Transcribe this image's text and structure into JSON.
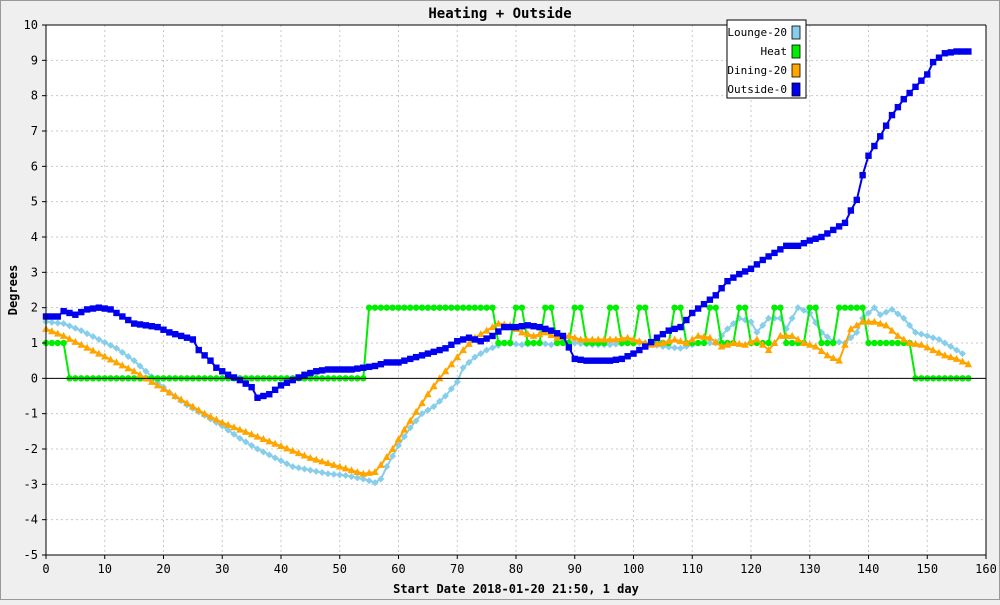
{
  "chart_data": {
    "type": "line",
    "title": "Heating + Outside",
    "xlabel": "Start Date 2018-01-20 21:50, 1 day",
    "ylabel": "Degrees",
    "xlim": [
      0,
      160
    ],
    "ylim": [
      -5,
      10
    ],
    "xticks": [
      0,
      10,
      20,
      30,
      40,
      50,
      60,
      70,
      80,
      90,
      100,
      110,
      120,
      130,
      140,
      150,
      160
    ],
    "yticks": [
      -5,
      -4,
      -3,
      -2,
      -1,
      0,
      1,
      2,
      3,
      4,
      5,
      6,
      7,
      8,
      9,
      10
    ],
    "grid": true,
    "legend_position": "top-right",
    "series": [
      {
        "name": "Lounge-20",
        "color": "#87ceeb",
        "marker": "diamond",
        "points": [
          [
            0,
            1.6
          ],
          [
            3,
            1.55
          ],
          [
            6,
            1.35
          ],
          [
            9,
            1.1
          ],
          [
            12,
            0.85
          ],
          [
            15,
            0.5
          ],
          [
            18,
            0.05
          ],
          [
            21,
            -0.4
          ],
          [
            24,
            -0.75
          ],
          [
            27,
            -1.05
          ],
          [
            30,
            -1.35
          ],
          [
            33,
            -1.7
          ],
          [
            36,
            -2.0
          ],
          [
            39,
            -2.25
          ],
          [
            42,
            -2.5
          ],
          [
            45,
            -2.6
          ],
          [
            48,
            -2.7
          ],
          [
            51,
            -2.75
          ],
          [
            54,
            -2.85
          ],
          [
            56,
            -2.95
          ],
          [
            57,
            -2.85
          ],
          [
            58,
            -2.5
          ],
          [
            60,
            -1.9
          ],
          [
            62,
            -1.4
          ],
          [
            64,
            -1.0
          ],
          [
            66,
            -0.8
          ],
          [
            68,
            -0.5
          ],
          [
            70,
            -0.1
          ],
          [
            71,
            0.3
          ],
          [
            73,
            0.6
          ],
          [
            75,
            0.8
          ],
          [
            78,
            1.0
          ],
          [
            81,
            0.95
          ],
          [
            84,
            1.0
          ],
          [
            86,
            0.95
          ],
          [
            88,
            1.05
          ],
          [
            90,
            1.0
          ],
          [
            93,
            0.95
          ],
          [
            96,
            0.95
          ],
          [
            99,
            1.0
          ],
          [
            102,
            1.0
          ],
          [
            105,
            0.9
          ],
          [
            108,
            0.85
          ],
          [
            111,
            1.0
          ],
          [
            114,
            1.0
          ],
          [
            116,
            1.4
          ],
          [
            118,
            1.7
          ],
          [
            120,
            1.6
          ],
          [
            121,
            1.3
          ],
          [
            123,
            1.7
          ],
          [
            125,
            1.7
          ],
          [
            126,
            1.4
          ],
          [
            128,
            2.0
          ],
          [
            130,
            1.85
          ],
          [
            132,
            1.3
          ],
          [
            134,
            1.05
          ],
          [
            136,
            1.0
          ],
          [
            138,
            1.3
          ],
          [
            139,
            1.7
          ],
          [
            141,
            2.0
          ],
          [
            142,
            1.8
          ],
          [
            144,
            1.95
          ],
          [
            146,
            1.7
          ],
          [
            148,
            1.3
          ],
          [
            150,
            1.2
          ],
          [
            152,
            1.1
          ],
          [
            154,
            0.9
          ],
          [
            156,
            0.7
          ]
        ]
      },
      {
        "name": "Heat",
        "color": "#00ee00",
        "marker": "circle",
        "points": [
          [
            0,
            1
          ],
          [
            3,
            1
          ],
          [
            4,
            0
          ],
          [
            54,
            0
          ],
          [
            55,
            2
          ],
          [
            76,
            2
          ],
          [
            77,
            1
          ],
          [
            79,
            1
          ],
          [
            80,
            2
          ],
          [
            81,
            2
          ],
          [
            82,
            1
          ],
          [
            84,
            1
          ],
          [
            85,
            2
          ],
          [
            86,
            2
          ],
          [
            87,
            1
          ],
          [
            89,
            1
          ],
          [
            90,
            2
          ],
          [
            91,
            2
          ],
          [
            92,
            1
          ],
          [
            95,
            1
          ],
          [
            96,
            2
          ],
          [
            97,
            2
          ],
          [
            98,
            1
          ],
          [
            100,
            1
          ],
          [
            101,
            2
          ],
          [
            102,
            2
          ],
          [
            103,
            1
          ],
          [
            106,
            1
          ],
          [
            107,
            2
          ],
          [
            108,
            2
          ],
          [
            109,
            1
          ],
          [
            112,
            1
          ],
          [
            113,
            2
          ],
          [
            114,
            2
          ],
          [
            115,
            1
          ],
          [
            117,
            1
          ],
          [
            118,
            2
          ],
          [
            119,
            2
          ],
          [
            120,
            1
          ],
          [
            123,
            1
          ],
          [
            124,
            2
          ],
          [
            125,
            2
          ],
          [
            126,
            1
          ],
          [
            129,
            1
          ],
          [
            130,
            2
          ],
          [
            131,
            2
          ],
          [
            132,
            1
          ],
          [
            134,
            1
          ],
          [
            135,
            2
          ],
          [
            139,
            2
          ],
          [
            140,
            1
          ],
          [
            147,
            1
          ],
          [
            148,
            0
          ],
          [
            157,
            0
          ]
        ]
      },
      {
        "name": "Dining-20",
        "color": "#ffa500",
        "marker": "triangle",
        "points": [
          [
            0,
            1.4
          ],
          [
            3,
            1.2
          ],
          [
            6,
            0.95
          ],
          [
            9,
            0.7
          ],
          [
            12,
            0.45
          ],
          [
            15,
            0.2
          ],
          [
            18,
            -0.1
          ],
          [
            21,
            -0.4
          ],
          [
            24,
            -0.7
          ],
          [
            27,
            -1.0
          ],
          [
            30,
            -1.25
          ],
          [
            33,
            -1.45
          ],
          [
            36,
            -1.65
          ],
          [
            39,
            -1.85
          ],
          [
            42,
            -2.05
          ],
          [
            45,
            -2.25
          ],
          [
            48,
            -2.4
          ],
          [
            51,
            -2.55
          ],
          [
            54,
            -2.7
          ],
          [
            56,
            -2.65
          ],
          [
            57,
            -2.45
          ],
          [
            59,
            -2.0
          ],
          [
            61,
            -1.45
          ],
          [
            63,
            -0.95
          ],
          [
            65,
            -0.45
          ],
          [
            67,
            0.0
          ],
          [
            69,
            0.4
          ],
          [
            71,
            0.8
          ],
          [
            73,
            1.15
          ],
          [
            75,
            1.35
          ],
          [
            77,
            1.55
          ],
          [
            79,
            1.5
          ],
          [
            81,
            1.3
          ],
          [
            83,
            1.2
          ],
          [
            85,
            1.3
          ],
          [
            87,
            1.15
          ],
          [
            89,
            1.2
          ],
          [
            91,
            1.1
          ],
          [
            93,
            1.1
          ],
          [
            95,
            1.1
          ],
          [
            97,
            1.1
          ],
          [
            99,
            1.15
          ],
          [
            101,
            1.05
          ],
          [
            103,
            0.95
          ],
          [
            105,
            1.0
          ],
          [
            107,
            1.1
          ],
          [
            109,
            1.0
          ],
          [
            111,
            1.2
          ],
          [
            113,
            1.15
          ],
          [
            115,
            0.9
          ],
          [
            117,
            1.0
          ],
          [
            119,
            0.95
          ],
          [
            121,
            1.1
          ],
          [
            123,
            0.8
          ],
          [
            125,
            1.2
          ],
          [
            127,
            1.2
          ],
          [
            129,
            1.0
          ],
          [
            131,
            0.9
          ],
          [
            133,
            0.65
          ],
          [
            135,
            0.5
          ],
          [
            137,
            1.4
          ],
          [
            139,
            1.6
          ],
          [
            141,
            1.6
          ],
          [
            143,
            1.5
          ],
          [
            145,
            1.2
          ],
          [
            147,
            1.0
          ],
          [
            149,
            0.95
          ],
          [
            151,
            0.8
          ],
          [
            153,
            0.65
          ],
          [
            155,
            0.55
          ],
          [
            157,
            0.4
          ]
        ]
      },
      {
        "name": "Outside-0",
        "color": "#0000ee",
        "marker": "square",
        "points": [
          [
            0,
            1.75
          ],
          [
            2,
            1.75
          ],
          [
            3,
            1.9
          ],
          [
            5,
            1.8
          ],
          [
            7,
            1.95
          ],
          [
            9,
            2.0
          ],
          [
            11,
            1.95
          ],
          [
            13,
            1.75
          ],
          [
            15,
            1.55
          ],
          [
            17,
            1.5
          ],
          [
            19,
            1.45
          ],
          [
            21,
            1.3
          ],
          [
            23,
            1.2
          ],
          [
            25,
            1.1
          ],
          [
            26,
            0.8
          ],
          [
            28,
            0.5
          ],
          [
            29,
            0.3
          ],
          [
            31,
            0.1
          ],
          [
            33,
            -0.05
          ],
          [
            35,
            -0.25
          ],
          [
            36,
            -0.55
          ],
          [
            38,
            -0.45
          ],
          [
            40,
            -0.2
          ],
          [
            42,
            -0.05
          ],
          [
            44,
            0.1
          ],
          [
            46,
            0.2
          ],
          [
            48,
            0.25
          ],
          [
            50,
            0.25
          ],
          [
            52,
            0.25
          ],
          [
            54,
            0.3
          ],
          [
            56,
            0.35
          ],
          [
            58,
            0.45
          ],
          [
            60,
            0.45
          ],
          [
            62,
            0.55
          ],
          [
            64,
            0.65
          ],
          [
            66,
            0.75
          ],
          [
            68,
            0.85
          ],
          [
            70,
            1.05
          ],
          [
            72,
            1.15
          ],
          [
            74,
            1.05
          ],
          [
            76,
            1.2
          ],
          [
            78,
            1.45
          ],
          [
            80,
            1.45
          ],
          [
            82,
            1.5
          ],
          [
            84,
            1.45
          ],
          [
            86,
            1.35
          ],
          [
            88,
            1.2
          ],
          [
            90,
            0.55
          ],
          [
            92,
            0.5
          ],
          [
            94,
            0.5
          ],
          [
            96,
            0.5
          ],
          [
            98,
            0.55
          ],
          [
            100,
            0.7
          ],
          [
            102,
            0.9
          ],
          [
            104,
            1.15
          ],
          [
            106,
            1.35
          ],
          [
            108,
            1.45
          ],
          [
            110,
            1.85
          ],
          [
            112,
            2.1
          ],
          [
            114,
            2.35
          ],
          [
            116,
            2.75
          ],
          [
            118,
            2.95
          ],
          [
            120,
            3.1
          ],
          [
            122,
            3.35
          ],
          [
            124,
            3.55
          ],
          [
            126,
            3.75
          ],
          [
            128,
            3.75
          ],
          [
            130,
            3.9
          ],
          [
            132,
            4.0
          ],
          [
            134,
            4.2
          ],
          [
            136,
            4.4
          ],
          [
            137,
            4.75
          ],
          [
            138,
            5.05
          ],
          [
            139,
            5.75
          ],
          [
            140,
            6.3
          ],
          [
            142,
            6.85
          ],
          [
            144,
            7.45
          ],
          [
            146,
            7.9
          ],
          [
            148,
            8.25
          ],
          [
            150,
            8.6
          ],
          [
            151,
            8.95
          ],
          [
            153,
            9.2
          ],
          [
            155,
            9.25
          ],
          [
            157,
            9.25
          ]
        ]
      }
    ]
  }
}
